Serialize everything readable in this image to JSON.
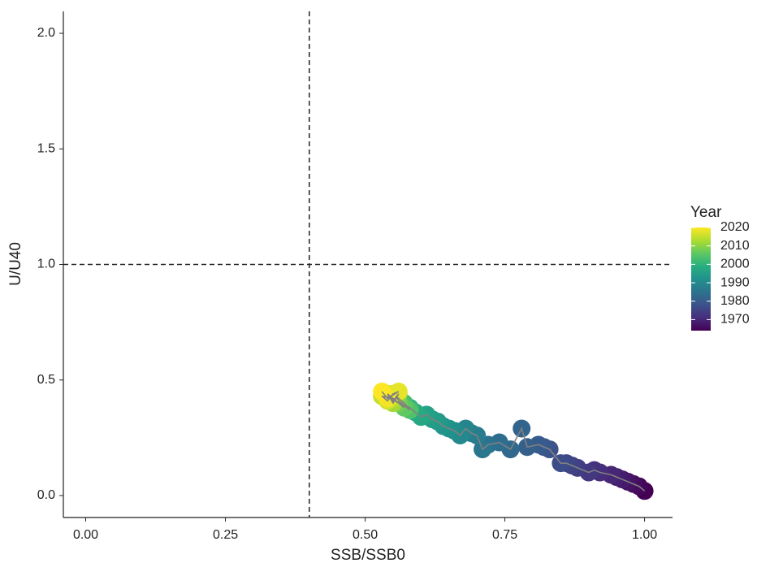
{
  "chart_data": {
    "type": "scatter",
    "x_label": "SSB/SSB0",
    "y_label": "U/U40",
    "legend_title": "Year",
    "x": [
      1.0,
      0.99,
      0.98,
      0.97,
      0.96,
      0.95,
      0.94,
      0.92,
      0.91,
      0.9,
      0.88,
      0.87,
      0.86,
      0.85,
      0.83,
      0.82,
      0.81,
      0.79,
      0.78,
      0.76,
      0.74,
      0.72,
      0.71,
      0.7,
      0.69,
      0.68,
      0.67,
      0.66,
      0.65,
      0.64,
      0.63,
      0.62,
      0.61,
      0.6,
      0.59,
      0.58,
      0.57,
      0.56,
      0.555,
      0.57,
      0.58,
      0.56,
      0.57,
      0.55,
      0.56,
      0.54,
      0.55,
      0.56,
      0.55,
      0.54,
      0.55,
      0.53,
      0.54,
      0.55,
      0.56,
      0.54,
      0.53
    ],
    "y": [
      0.02,
      0.04,
      0.05,
      0.06,
      0.07,
      0.08,
      0.09,
      0.1,
      0.11,
      0.1,
      0.12,
      0.13,
      0.14,
      0.14,
      0.2,
      0.21,
      0.22,
      0.21,
      0.29,
      0.2,
      0.23,
      0.22,
      0.2,
      0.26,
      0.27,
      0.29,
      0.26,
      0.28,
      0.29,
      0.3,
      0.32,
      0.33,
      0.35,
      0.34,
      0.36,
      0.38,
      0.39,
      0.41,
      0.43,
      0.4,
      0.37,
      0.41,
      0.38,
      0.42,
      0.4,
      0.43,
      0.41,
      0.44,
      0.4,
      0.44,
      0.42,
      0.43,
      0.41,
      0.44,
      0.45,
      0.42,
      0.45
    ],
    "year": [
      1964,
      1965,
      1966,
      1967,
      1968,
      1969,
      1970,
      1971,
      1972,
      1973,
      1974,
      1975,
      1976,
      1977,
      1978,
      1979,
      1980,
      1981,
      1982,
      1983,
      1984,
      1985,
      1986,
      1987,
      1988,
      1989,
      1990,
      1991,
      1992,
      1993,
      1994,
      1995,
      1996,
      1997,
      1998,
      1999,
      2000,
      2001,
      2002,
      2003,
      2004,
      2005,
      2006,
      2007,
      2008,
      2009,
      2010,
      2011,
      2012,
      2013,
      2014,
      2015,
      2016,
      2017,
      2018,
      2019,
      2020
    ],
    "xlim": [
      -0.04,
      1.05
    ],
    "ylim": [
      -0.095,
      2.095
    ],
    "xticks": [
      {
        "value": 0,
        "label": "0.00"
      },
      {
        "value": 0.25,
        "label": "0.25"
      },
      {
        "value": 0.5,
        "label": "0.50"
      },
      {
        "value": 0.75,
        "label": "0.75"
      },
      {
        "value": 1,
        "label": "1.00"
      }
    ],
    "yticks": [
      {
        "value": 0,
        "label": "0.0"
      },
      {
        "value": 0.5,
        "label": "0.5"
      },
      {
        "value": 1,
        "label": "1.0"
      },
      {
        "value": 1.5,
        "label": "1.5"
      },
      {
        "value": 2,
        "label": "2.0"
      }
    ],
    "vline": 0.4,
    "hline": 1.0,
    "colorbar_ticks": [
      1970,
      1980,
      1990,
      2000,
      2010,
      2020
    ],
    "colormap": [
      "#440154",
      "#472d7b",
      "#3b528b",
      "#2c728e",
      "#21918c",
      "#28ae80",
      "#5ec962",
      "#addc30",
      "#fde725"
    ],
    "path_color": "#808080"
  }
}
